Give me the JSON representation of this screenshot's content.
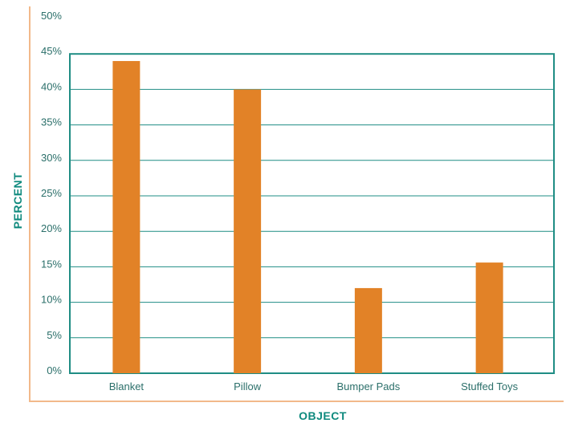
{
  "chart_data": {
    "type": "bar",
    "title": "",
    "xlabel": "OBJECT",
    "ylabel": "PERCENT",
    "categories": [
      "Blanket",
      "Pillow",
      "Bumper Pads",
      "Stuffed Toys"
    ],
    "values": [
      44,
      40,
      12,
      15.6
    ],
    "ylim": [
      0,
      50
    ],
    "y_ticks": [
      "0%",
      "5%",
      "10%",
      "15%",
      "20%",
      "25%",
      "30%",
      "35%",
      "40%",
      "45%",
      "50%"
    ],
    "grid": true,
    "legend": "none",
    "colors": {
      "bar": "#e28227",
      "gridline": "#1f8d84",
      "frame": "#1f8d84",
      "outer_axis": "#f2b98a",
      "tick_text": "#2b6f6a",
      "axis_title": "#0f8a7e"
    }
  }
}
